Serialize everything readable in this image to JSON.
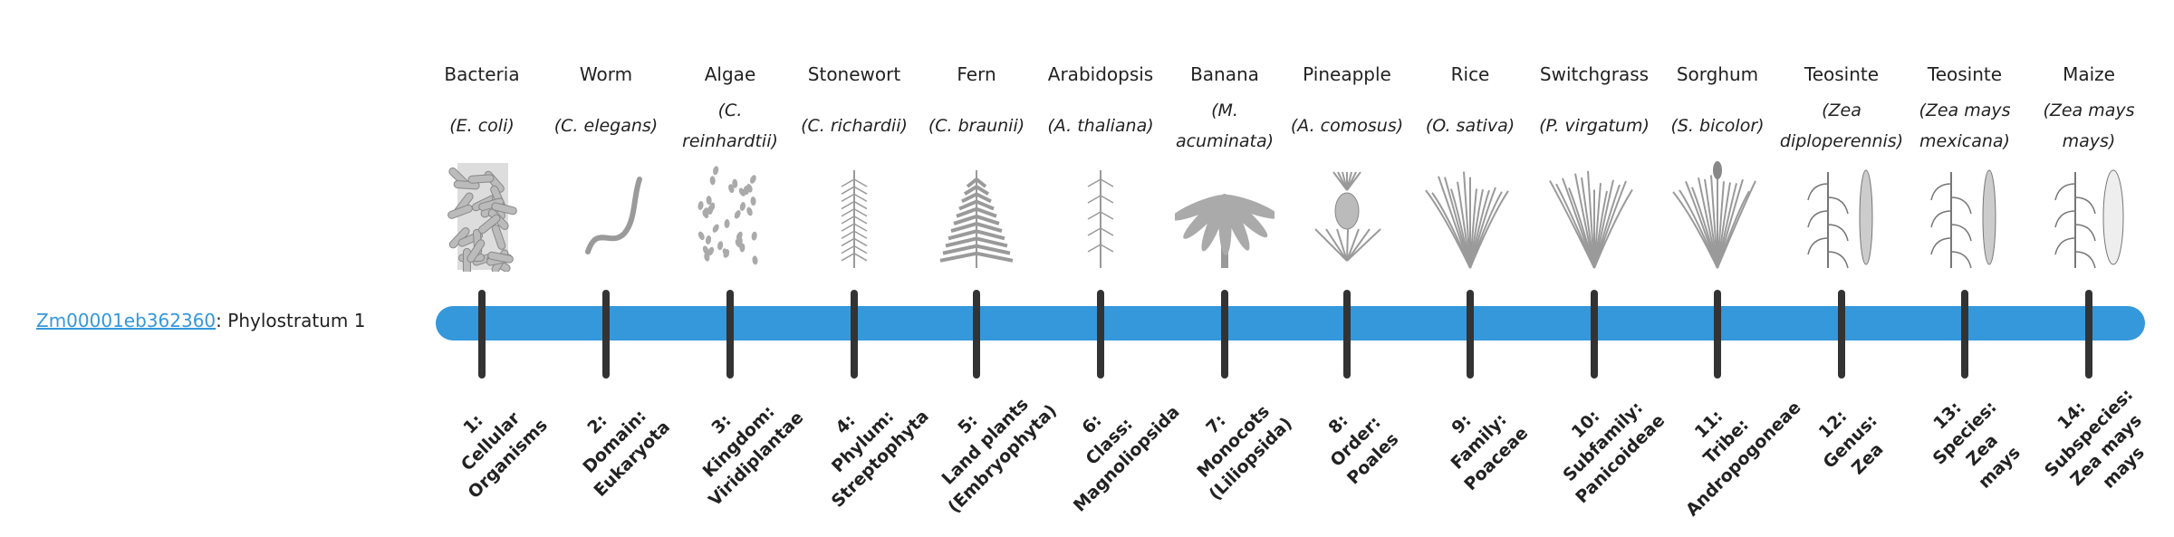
{
  "gene": {
    "id": "Zm00001eb362360",
    "suffix": ": Phylostratum 1"
  },
  "colors": {
    "bar": "#3498db",
    "tick": "#333333",
    "link": "#3498db"
  },
  "strata": [
    {
      "common": "Bacteria",
      "species": "(E. coli)",
      "icon": "bacteria-icon",
      "rank": [
        "1:",
        "Cellular",
        "Organisms"
      ]
    },
    {
      "common": "Worm",
      "species": "(C. elegans)",
      "icon": "worm-icon",
      "rank": [
        "2:",
        "Domain:",
        "Eukaryota"
      ]
    },
    {
      "common": "Algae",
      "species": "(C. reinhardtii)",
      "icon": "algae-icon",
      "rank": [
        "3:",
        "Kingdom:",
        "Viridiplantae"
      ]
    },
    {
      "common": "Stonewort",
      "species": "(C. richardii)",
      "icon": "stonewort-icon",
      "rank": [
        "4:",
        "Phylum:",
        "Streptophyta"
      ]
    },
    {
      "common": "Fern",
      "species": "(C. braunii)",
      "icon": "fern-icon",
      "rank": [
        "5:",
        "Land plants",
        "(Embryophyta)"
      ]
    },
    {
      "common": "Arabidopsis",
      "species": "(A. thaliana)",
      "icon": "arabidopsis-icon",
      "rank": [
        "6:",
        "Class:",
        "Magnoliopsida"
      ]
    },
    {
      "common": "Banana",
      "species": "(M. acuminata)",
      "icon": "banana-icon",
      "rank": [
        "7:",
        "Monocots",
        "(Liliopsida)"
      ]
    },
    {
      "common": "Pineapple",
      "species": "(A. comosus)",
      "icon": "pineapple-icon",
      "rank": [
        "8:",
        "Order:",
        "Poales"
      ]
    },
    {
      "common": "Rice",
      "species": "(O. sativa)",
      "icon": "rice-icon",
      "rank": [
        "9:",
        "Family:",
        "Poaceae"
      ]
    },
    {
      "common": "Switchgrass",
      "species": "(P. virgatum)",
      "icon": "switchgrass-icon",
      "rank": [
        "10:",
        "Subfamily:",
        "Panicoideae"
      ]
    },
    {
      "common": "Sorghum",
      "species": "(S. bicolor)",
      "icon": "sorghum-icon",
      "rank": [
        "11:",
        "Tribe:",
        "Andropogoneae"
      ]
    },
    {
      "common": "Teosinte",
      "species": "(Zea diploperennis)",
      "icon": "teosinte-icon",
      "rank": [
        "12:",
        "Genus:",
        "Zea"
      ]
    },
    {
      "common": "Teosinte",
      "species": "(Zea mays mexicana)",
      "icon": "teosinte-icon",
      "rank": [
        "13:",
        "Species:",
        "Zea",
        "mays"
      ]
    },
    {
      "common": "Maize",
      "species": "(Zea mays mays)",
      "icon": "maize-icon",
      "rank": [
        "14:",
        "Subspecies:",
        "Zea mays",
        "mays"
      ]
    }
  ]
}
